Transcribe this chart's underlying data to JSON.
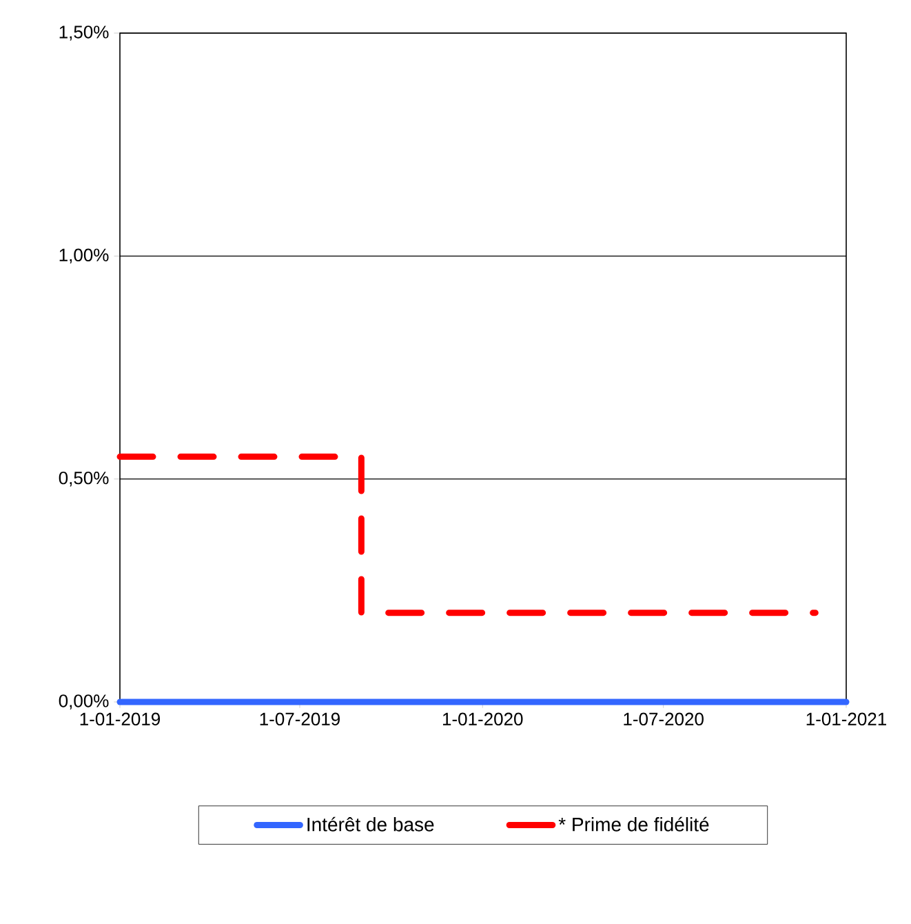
{
  "chart_data": {
    "type": "step",
    "xlim": [
      "2019-01-01",
      "2021-01-01"
    ],
    "xticks": [
      {
        "value": "2019-01-01",
        "label": "1-01-2019"
      },
      {
        "value": "2019-07-01",
        "label": "1-07-2019"
      },
      {
        "value": "2020-01-01",
        "label": "1-01-2020"
      },
      {
        "value": "2020-07-01",
        "label": "1-07-2020"
      },
      {
        "value": "2021-01-01",
        "label": "1-01-2021"
      }
    ],
    "ylim": [
      0,
      1.5
    ],
    "yticks": [
      {
        "value": 0,
        "label": "0,00%"
      },
      {
        "value": 0.5,
        "label": "0,50%"
      },
      {
        "value": 1.0,
        "label": "1,00%"
      },
      {
        "value": 1.5,
        "label": "1,50%"
      }
    ],
    "grid": "y",
    "legend": "bottom",
    "series": [
      {
        "name": "Intérêt de base",
        "color": "#3366ff",
        "line_style": "solid",
        "x": [
          "2019-01-01",
          "2021-01-01"
        ],
        "values": [
          0,
          0
        ]
      },
      {
        "name": "* Prime de fidélité",
        "color": "#ff0000",
        "line_style": "dashed",
        "x": [
          "2019-01-01",
          "2019-09-01",
          "2020-12-01"
        ],
        "values": [
          0.55,
          0.2,
          0.2
        ]
      }
    ]
  }
}
